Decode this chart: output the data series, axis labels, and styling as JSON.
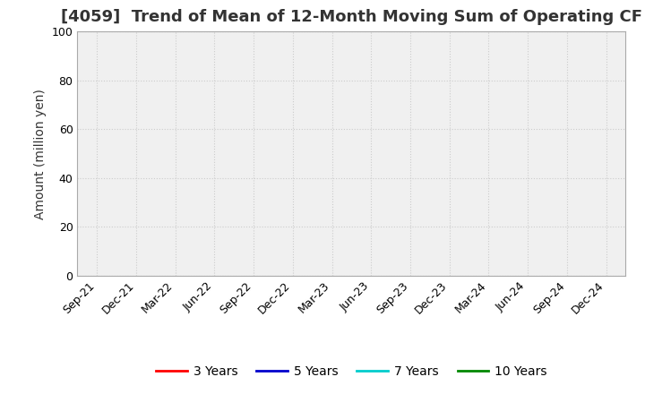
{
  "title": "[4059]  Trend of Mean of 12-Month Moving Sum of Operating CF",
  "ylabel": "Amount (million yen)",
  "ylim": [
    0,
    100
  ],
  "yticks": [
    0,
    20,
    40,
    60,
    80,
    100
  ],
  "x_labels": [
    "Sep-21",
    "Dec-21",
    "Mar-22",
    "Jun-22",
    "Sep-22",
    "Dec-22",
    "Mar-23",
    "Jun-23",
    "Sep-23",
    "Dec-23",
    "Mar-24",
    "Jun-24",
    "Sep-24",
    "Dec-24"
  ],
  "background_color": "#ffffff",
  "plot_bg_color": "#f0f0f0",
  "grid_color": "#cccccc",
  "border_color": "#aaaaaa",
  "legend_entries": [
    {
      "label": "3 Years",
      "color": "#ff0000"
    },
    {
      "label": "5 Years",
      "color": "#0000cc"
    },
    {
      "label": "7 Years",
      "color": "#00cccc"
    },
    {
      "label": "10 Years",
      "color": "#008800"
    }
  ],
  "title_fontsize": 13,
  "title_color": "#333333",
  "axis_label_fontsize": 10,
  "tick_fontsize": 9,
  "legend_fontsize": 10
}
